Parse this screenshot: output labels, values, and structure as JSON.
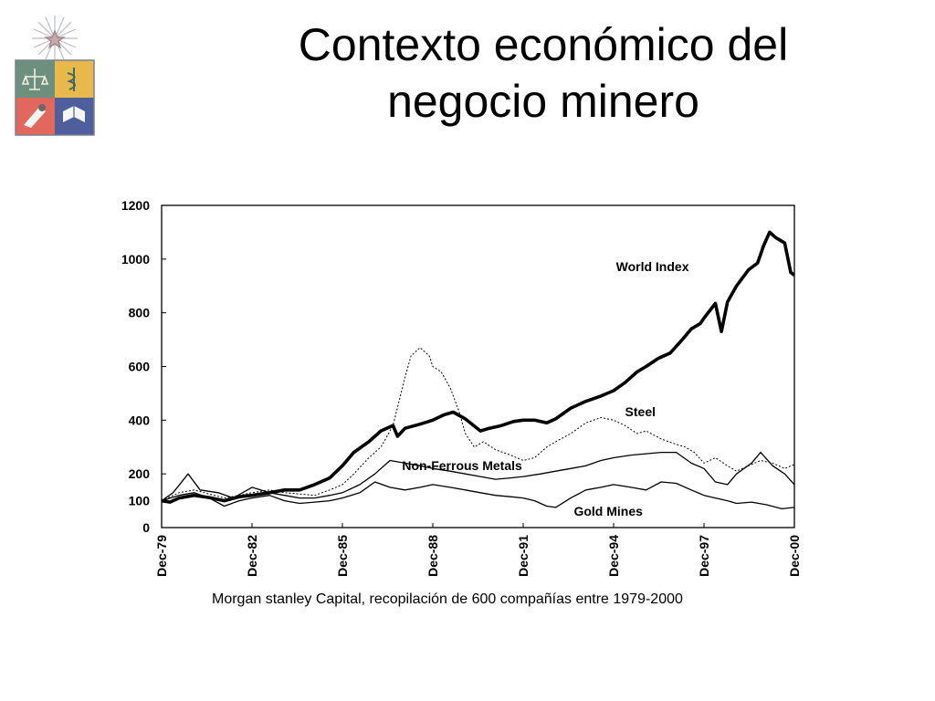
{
  "slide": {
    "title_line1": "Contexto económico del",
    "title_line2": "negocio minero",
    "caption": "Morgan stanley Capital, recopilación de 600 compañías entre 1979-2000",
    "logo": "university-coat-of-arms"
  },
  "chart_data": {
    "type": "line",
    "title": "",
    "xlabel": "",
    "ylabel": "",
    "ylim": [
      0,
      1200
    ],
    "yticks": [
      0,
      100,
      200,
      400,
      600,
      800,
      1000,
      1200
    ],
    "ytick_labels": [
      "0",
      "100",
      "200",
      "400",
      "600",
      "800",
      "1000",
      "1200"
    ],
    "xlim": [
      1979.92,
      2000.92
    ],
    "xticks": [
      1979.92,
      1982.92,
      1985.92,
      1988.92,
      1991.92,
      1994.92,
      1997.92,
      2000.92
    ],
    "xtick_labels": [
      "Dec-79",
      "Dec-82",
      "Dec-85",
      "Dec-88",
      "Dec-91",
      "Dec-94",
      "Dec-97",
      "Dec-00"
    ],
    "grid": false,
    "legend": "inline labels",
    "series": [
      {
        "name": "World Index",
        "label_at": [
          1995.0,
          955
        ],
        "x": [
          1979.92,
          1980.2,
          1980.5,
          1981.0,
          1981.5,
          1982.0,
          1982.5,
          1982.92,
          1983.5,
          1984.0,
          1984.5,
          1985.0,
          1985.5,
          1985.92,
          1986.3,
          1986.8,
          1987.2,
          1987.6,
          1987.75,
          1988.0,
          1988.5,
          1988.92,
          1989.3,
          1989.6,
          1990.0,
          1990.5,
          1990.8,
          1991.2,
          1991.6,
          1991.92,
          1992.3,
          1992.7,
          1993.0,
          1993.5,
          1994.0,
          1994.5,
          1994.92,
          1995.3,
          1995.7,
          1996.0,
          1996.4,
          1996.8,
          1997.2,
          1997.5,
          1997.8,
          1997.92,
          1998.3,
          1998.5,
          1998.7,
          1999.0,
          1999.4,
          1999.7,
          1999.9,
          2000.1,
          2000.3,
          2000.6,
          2000.8,
          2000.92
        ],
        "values": [
          100,
          95,
          110,
          120,
          112,
          100,
          115,
          120,
          130,
          140,
          140,
          160,
          185,
          230,
          280,
          320,
          360,
          380,
          340,
          370,
          385,
          400,
          420,
          430,
          405,
          360,
          370,
          380,
          395,
          400,
          400,
          390,
          405,
          445,
          470,
          490,
          510,
          540,
          580,
          600,
          630,
          650,
          700,
          740,
          760,
          780,
          835,
          730,
          840,
          900,
          960,
          985,
          1050,
          1100,
          1080,
          1060,
          950,
          940
        ]
      },
      {
        "name": "Steel",
        "label_at": [
          1995.3,
          415
        ],
        "x": [
          1979.92,
          1980.5,
          1981.0,
          1981.5,
          1982.0,
          1982.5,
          1982.92,
          1983.5,
          1984.0,
          1984.5,
          1985.0,
          1985.5,
          1985.92,
          1986.3,
          1986.8,
          1987.2,
          1987.6,
          1987.8,
          1988.0,
          1988.2,
          1988.5,
          1988.8,
          1988.92,
          1989.2,
          1989.5,
          1989.8,
          1990.0,
          1990.3,
          1990.6,
          1991.0,
          1991.5,
          1991.92,
          1992.3,
          1992.7,
          1993.0,
          1993.5,
          1994.0,
          1994.5,
          1994.92,
          1995.3,
          1995.7,
          1996.0,
          1996.5,
          1997.0,
          1997.3,
          1997.6,
          1997.92,
          1998.3,
          1998.7,
          1999.0,
          1999.4,
          1999.8,
          2000.2,
          2000.6,
          2000.92
        ],
        "values": [
          100,
          130,
          140,
          125,
          110,
          120,
          130,
          140,
          130,
          125,
          120,
          140,
          160,
          200,
          260,
          300,
          380,
          470,
          560,
          640,
          670,
          640,
          600,
          580,
          520,
          430,
          350,
          300,
          320,
          290,
          270,
          250,
          260,
          300,
          320,
          350,
          390,
          410,
          400,
          380,
          350,
          360,
          330,
          310,
          300,
          280,
          240,
          260,
          230,
          210,
          230,
          250,
          240,
          220,
          235
        ]
      },
      {
        "name": "Non-Ferrous Metals",
        "label_at": [
          1987.9,
          215
        ],
        "x": [
          1979.92,
          1980.3,
          1980.8,
          1981.2,
          1981.8,
          1982.3,
          1982.92,
          1983.5,
          1984.0,
          1984.5,
          1985.0,
          1985.5,
          1985.92,
          1986.5,
          1987.0,
          1987.5,
          1988.0,
          1988.5,
          1988.92,
          1989.5,
          1990.0,
          1990.5,
          1991.0,
          1991.5,
          1991.92,
          1992.5,
          1993.0,
          1993.5,
          1994.0,
          1994.5,
          1994.92,
          1995.5,
          1996.0,
          1996.5,
          1997.0,
          1997.5,
          1997.92,
          1998.3,
          1998.7,
          1999.0,
          1999.5,
          1999.8,
          2000.2,
          2000.6,
          2000.92
        ],
        "values": [
          100,
          130,
          200,
          140,
          130,
          110,
          150,
          130,
          120,
          110,
          110,
          120,
          130,
          160,
          200,
          250,
          240,
          230,
          220,
          210,
          200,
          190,
          180,
          185,
          190,
          200,
          210,
          220,
          230,
          250,
          260,
          270,
          275,
          280,
          280,
          240,
          220,
          170,
          160,
          200,
          240,
          280,
          230,
          200,
          160
        ]
      },
      {
        "name": "Gold Mines",
        "label_at": [
          1993.6,
          45
        ],
        "x": [
          1979.92,
          1980.5,
          1981.0,
          1981.5,
          1982.0,
          1982.5,
          1982.92,
          1983.5,
          1984.0,
          1984.5,
          1985.0,
          1985.5,
          1985.92,
          1986.5,
          1987.0,
          1987.5,
          1988.0,
          1988.5,
          1988.92,
          1989.5,
          1990.0,
          1990.5,
          1991.0,
          1991.5,
          1991.92,
          1992.3,
          1992.7,
          1993.0,
          1993.5,
          1994.0,
          1994.5,
          1994.92,
          1995.5,
          1996.0,
          1996.5,
          1997.0,
          1997.5,
          1997.92,
          1998.3,
          1998.7,
          1999.0,
          1999.5,
          2000.0,
          2000.5,
          2000.92
        ],
        "values": [
          100,
          120,
          130,
          110,
          80,
          100,
          110,
          120,
          100,
          90,
          95,
          100,
          110,
          130,
          170,
          150,
          140,
          150,
          160,
          150,
          140,
          130,
          120,
          115,
          110,
          100,
          80,
          75,
          110,
          140,
          150,
          160,
          150,
          140,
          170,
          165,
          140,
          120,
          110,
          100,
          90,
          95,
          85,
          70,
          75
        ]
      }
    ]
  }
}
